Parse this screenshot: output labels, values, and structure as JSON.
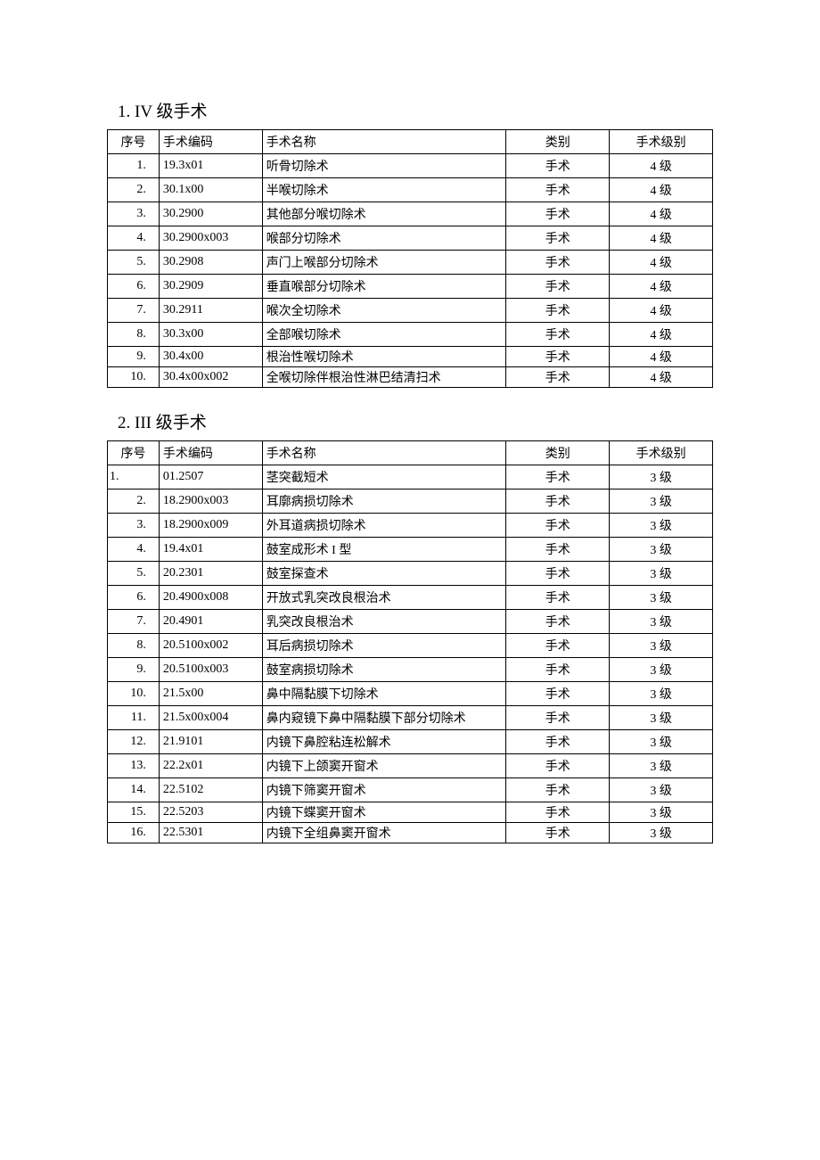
{
  "sections": [
    {
      "title": "1. IV 级手术",
      "columns": [
        "序号",
        "手术编码",
        "手术名称",
        "类别",
        "手术级别"
      ],
      "rows": [
        {
          "seq": "1.",
          "code": "19.3x01",
          "name": "听骨切除术",
          "cat": "手术",
          "level": "4 级",
          "tight": false,
          "seqLeft": false
        },
        {
          "seq": "2.",
          "code": "30.1x00",
          "name": "半喉切除术",
          "cat": "手术",
          "level": "4 级",
          "tight": false,
          "seqLeft": false
        },
        {
          "seq": "3.",
          "code": "30.2900",
          "name": "其他部分喉切除术",
          "cat": "手术",
          "level": "4 级",
          "tight": false,
          "seqLeft": false
        },
        {
          "seq": "4.",
          "code": "30.2900x003",
          "name": "喉部分切除术",
          "cat": "手术",
          "level": "4 级",
          "tight": false,
          "seqLeft": false
        },
        {
          "seq": "5.",
          "code": "30.2908",
          "name": "声门上喉部分切除术",
          "cat": "手术",
          "level": "4 级",
          "tight": false,
          "seqLeft": false
        },
        {
          "seq": "6.",
          "code": "30.2909",
          "name": "垂直喉部分切除术",
          "cat": "手术",
          "level": "4 级",
          "tight": false,
          "seqLeft": false
        },
        {
          "seq": "7.",
          "code": "30.2911",
          "name": "喉次全切除术",
          "cat": "手术",
          "level": "4 级",
          "tight": false,
          "seqLeft": false
        },
        {
          "seq": "8.",
          "code": "30.3x00",
          "name": "全部喉切除术",
          "cat": "手术",
          "level": "4 级",
          "tight": false,
          "seqLeft": false
        },
        {
          "seq": "9.",
          "code": "30.4x00",
          "name": "根治性喉切除术",
          "cat": "手术",
          "level": "4 级",
          "tight": true,
          "seqLeft": false
        },
        {
          "seq": "10.",
          "code": "30.4x00x002",
          "name": "全喉切除伴根治性淋巴结清扫术",
          "cat": "手术",
          "level": "4 级",
          "tight": true,
          "seqLeft": false
        }
      ]
    },
    {
      "title": "2. III 级手术",
      "columns": [
        "序号",
        "手术编码",
        "手术名称",
        "类别",
        "手术级别"
      ],
      "rows": [
        {
          "seq": "1.",
          "code": "01.2507",
          "name": "茎突截短术",
          "cat": "手术",
          "level": "3 级",
          "tight": false,
          "seqLeft": true
        },
        {
          "seq": "2.",
          "code": "18.2900x003",
          "name": "耳廓病损切除术",
          "cat": "手术",
          "level": "3 级",
          "tight": false,
          "seqLeft": false
        },
        {
          "seq": "3.",
          "code": "18.2900x009",
          "name": "外耳道病损切除术",
          "cat": "手术",
          "level": "3 级",
          "tight": false,
          "seqLeft": false
        },
        {
          "seq": "4.",
          "code": "19.4x01",
          "name": "鼓室成形术 I 型",
          "cat": "手术",
          "level": "3 级",
          "tight": false,
          "seqLeft": false
        },
        {
          "seq": "5.",
          "code": "20.2301",
          "name": "鼓室探查术",
          "cat": "手术",
          "level": "3 级",
          "tight": false,
          "seqLeft": false
        },
        {
          "seq": "6.",
          "code": "20.4900x008",
          "name": "开放式乳突改良根治术",
          "cat": "手术",
          "level": "3 级",
          "tight": false,
          "seqLeft": false
        },
        {
          "seq": "7.",
          "code": "20.4901",
          "name": "乳突改良根治术",
          "cat": "手术",
          "level": "3 级",
          "tight": false,
          "seqLeft": false
        },
        {
          "seq": "8.",
          "code": "20.5100x002",
          "name": "耳后病损切除术",
          "cat": "手术",
          "level": "3 级",
          "tight": false,
          "seqLeft": false
        },
        {
          "seq": "9.",
          "code": "20.5100x003",
          "name": "鼓室病损切除术",
          "cat": "手术",
          "level": "3 级",
          "tight": false,
          "seqLeft": false
        },
        {
          "seq": "10.",
          "code": "21.5x00",
          "name": "鼻中隔黏膜下切除术",
          "cat": "手术",
          "level": "3 级",
          "tight": false,
          "seqLeft": false
        },
        {
          "seq": "11.",
          "code": "21.5x00x004",
          "name": "鼻内窥镜下鼻中隔黏膜下部分切除术",
          "cat": "手术",
          "level": "3 级",
          "tight": false,
          "seqLeft": false
        },
        {
          "seq": "12.",
          "code": "21.9101",
          "name": "内镜下鼻腔粘连松解术",
          "cat": "手术",
          "level": "3 级",
          "tight": false,
          "seqLeft": false
        },
        {
          "seq": "13.",
          "code": "22.2x01",
          "name": "内镜下上颌窦开窗术",
          "cat": "手术",
          "level": "3 级",
          "tight": false,
          "seqLeft": false
        },
        {
          "seq": "14.",
          "code": "22.5102",
          "name": "内镜下筛窦开窗术",
          "cat": "手术",
          "level": "3 级",
          "tight": false,
          "seqLeft": false
        },
        {
          "seq": "15.",
          "code": "22.5203",
          "name": "内镜下蝶窦开窗术",
          "cat": "手术",
          "level": "3 级",
          "tight": true,
          "seqLeft": false
        },
        {
          "seq": "16.",
          "code": "22.5301",
          "name": "内镜下全组鼻窦开窗术",
          "cat": "手术",
          "level": "3 级",
          "tight": true,
          "seqLeft": false
        }
      ]
    }
  ]
}
